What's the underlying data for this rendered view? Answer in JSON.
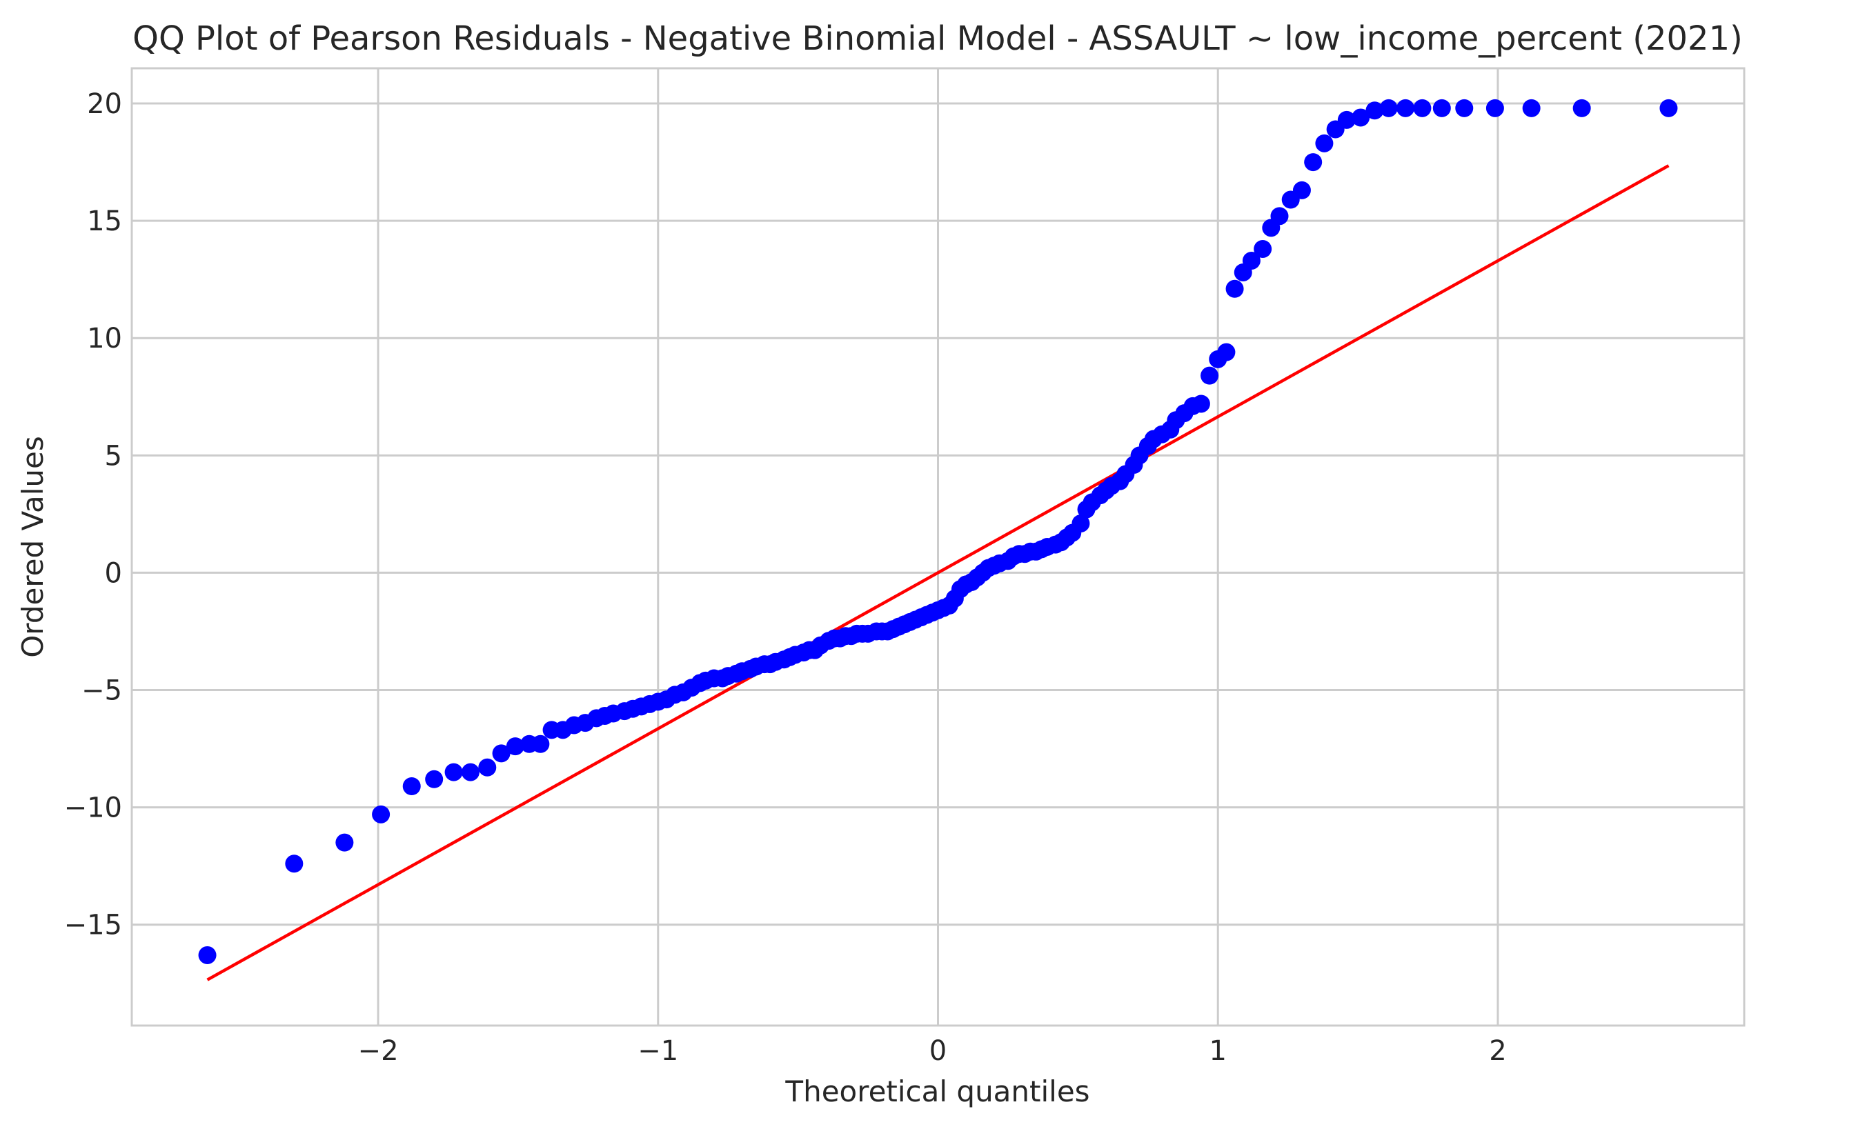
{
  "chart_data": {
    "type": "scatter",
    "title": "QQ Plot of Pearson Residuals - Negative Binomial Model - ASSAULT ~ low_income_percent (2021)",
    "xlabel": "Theoretical quantiles",
    "ylabel": "Ordered Values",
    "xlim": [
      -2.88,
      2.88
    ],
    "ylim": [
      -19.3,
      21.5
    ],
    "xticks": [
      -2,
      -1,
      0,
      1,
      2
    ],
    "xtick_labels": [
      "−2",
      "−1",
      "0",
      "1",
      "2"
    ],
    "yticks": [
      -15,
      -10,
      -5,
      0,
      5,
      10,
      15,
      20
    ],
    "ytick_labels": [
      "−15",
      "−10",
      "−5",
      "0",
      "5",
      "10",
      "15",
      "20"
    ],
    "grid": true,
    "colors": {
      "points": "#0000ff",
      "fit_line": "#ff0000",
      "grid": "#cccccc",
      "background": "#ffffff"
    },
    "fit_line": {
      "x": [
        -2.61,
        2.61
      ],
      "y": [
        -17.35,
        17.35
      ]
    },
    "series": [
      {
        "x": [
          -2.61,
          -2.3,
          -2.12,
          -1.99,
          -1.88,
          -1.8,
          -1.73,
          -1.67,
          -1.61,
          -1.56,
          -1.51,
          -1.46,
          -1.42,
          -1.38,
          -1.34,
          -1.3,
          -1.26,
          -1.22,
          -1.19,
          -1.16,
          -1.12,
          -1.09,
          -1.06,
          -1.03,
          -1.0,
          -0.97,
          -0.94,
          -0.91,
          -0.88,
          -0.85,
          -0.83,
          -0.8,
          -0.77,
          -0.75,
          -0.72,
          -0.7,
          -0.67,
          -0.65,
          -0.62,
          -0.6,
          -0.58,
          -0.55,
          -0.53,
          -0.51,
          -0.48,
          -0.46,
          -0.44,
          -0.42,
          -0.39,
          -0.37,
          -0.35,
          -0.33,
          -0.31,
          -0.29,
          -0.27,
          -0.25,
          -0.22,
          -0.2,
          -0.18,
          -0.16,
          -0.14,
          -0.12,
          -0.1,
          -0.08,
          -0.06,
          -0.04,
          -0.02,
          0.0,
          0.02,
          0.04,
          0.06,
          0.08,
          0.1,
          0.12,
          0.14,
          0.16,
          0.18,
          0.2,
          0.22,
          0.25,
          0.27,
          0.29,
          0.31,
          0.33,
          0.35,
          0.37,
          0.39,
          0.42,
          0.44,
          0.46,
          0.48,
          0.51,
          0.53,
          0.55,
          0.58,
          0.6,
          0.62,
          0.65,
          0.67,
          0.7,
          0.72,
          0.75,
          0.77,
          0.8,
          0.83,
          0.85,
          0.88,
          0.91,
          0.94,
          0.97,
          1.0,
          1.03,
          1.06,
          1.09,
          1.12,
          1.16,
          1.19,
          1.22,
          1.26,
          1.3,
          1.34,
          1.38,
          1.42,
          1.46,
          1.51,
          1.56,
          1.61,
          1.67,
          1.73,
          1.8,
          1.88,
          1.99,
          2.12,
          2.3,
          2.61
        ],
        "y": [
          -16.3,
          -12.4,
          -11.5,
          -10.3,
          -9.1,
          -8.8,
          -8.5,
          -8.5,
          -8.3,
          -7.7,
          -7.4,
          -7.3,
          -7.3,
          -6.7,
          -6.7,
          -6.5,
          -6.4,
          -6.2,
          -6.1,
          -6.0,
          -5.9,
          -5.8,
          -5.7,
          -5.6,
          -5.5,
          -5.4,
          -5.2,
          -5.1,
          -4.9,
          -4.7,
          -4.6,
          -4.5,
          -4.5,
          -4.4,
          -4.3,
          -4.2,
          -4.1,
          -4.0,
          -3.9,
          -3.9,
          -3.8,
          -3.7,
          -3.6,
          -3.5,
          -3.4,
          -3.3,
          -3.3,
          -3.1,
          -2.9,
          -2.8,
          -2.8,
          -2.7,
          -2.7,
          -2.6,
          -2.6,
          -2.6,
          -2.5,
          -2.5,
          -2.5,
          -2.4,
          -2.3,
          -2.2,
          -2.1,
          -2.0,
          -1.9,
          -1.8,
          -1.7,
          -1.6,
          -1.5,
          -1.4,
          -1.1,
          -0.7,
          -0.5,
          -0.4,
          -0.2,
          0.0,
          0.2,
          0.3,
          0.4,
          0.5,
          0.7,
          0.8,
          0.8,
          0.9,
          0.9,
          1.0,
          1.1,
          1.2,
          1.3,
          1.5,
          1.7,
          2.1,
          2.7,
          3.0,
          3.3,
          3.5,
          3.7,
          3.9,
          4.2,
          4.6,
          5.0,
          5.4,
          5.7,
          5.9,
          6.1,
          6.5,
          6.8,
          7.1,
          7.2,
          8.4,
          9.1,
          9.4,
          12.1,
          12.8,
          13.3,
          13.8,
          14.7,
          15.2,
          15.9,
          16.3,
          17.5,
          18.3,
          18.9,
          19.3,
          19.4,
          19.7,
          19.8,
          19.8,
          19.8,
          19.8,
          19.8,
          19.8,
          19.8,
          19.8,
          19.8
        ]
      }
    ]
  }
}
